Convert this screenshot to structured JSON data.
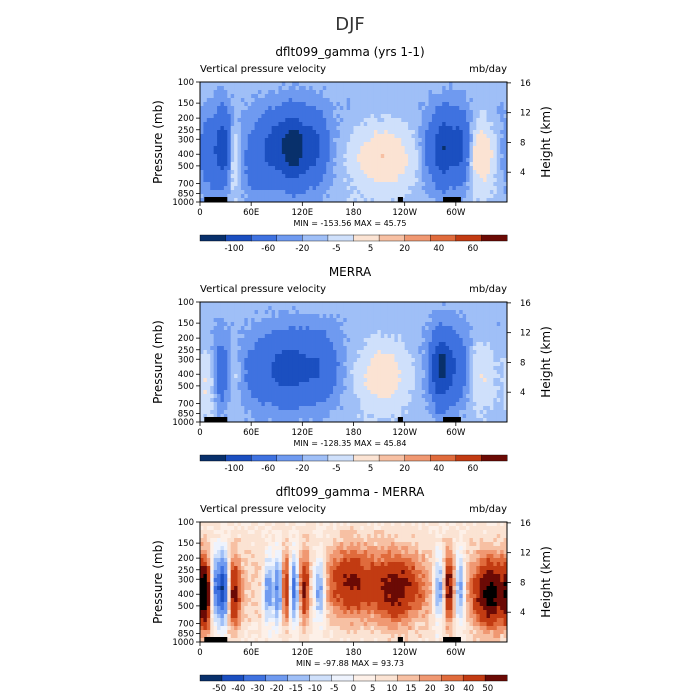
{
  "suptitle": "DJF",
  "colors": {
    "seq11": [
      "#08306b",
      "#1b4fc0",
      "#3f72e0",
      "#6f9af0",
      "#9fbff7",
      "#cfe0fb",
      "#fbe3d3",
      "#f7c0a3",
      "#f09872",
      "#e06b3c",
      "#c23b12",
      "#6b0a05"
    ],
    "seq13": [
      "#08306b",
      "#1b4fc0",
      "#3f72e0",
      "#6f9af0",
      "#9fbff7",
      "#cfe0fb",
      "#eef3fd",
      "#fdf0e8",
      "#fbe3d3",
      "#f7c0a3",
      "#f09872",
      "#e06b3c",
      "#c23b12",
      "#6b0a05"
    ]
  },
  "chart_data": [
    {
      "type": "heatmap",
      "title": "dflt099_gamma (yrs 1-1)",
      "left_label": "Vertical pressure velocity",
      "right_label": "mb/day",
      "ylabel": "Pressure (mb)",
      "ylabel_right": "Height (km)",
      "x_ticks": [
        "0",
        "60E",
        "120E",
        "180",
        "120W",
        "60W"
      ],
      "x_tick_lon": [
        0,
        60,
        120,
        180,
        240,
        300
      ],
      "y_ticks": [
        "100",
        "150",
        "200",
        "250",
        "300",
        "400",
        "500",
        "700",
        "850",
        "1000"
      ],
      "y_tick_p": [
        100,
        150,
        200,
        250,
        300,
        400,
        500,
        700,
        850,
        1000
      ],
      "right_ticks": [
        "16",
        "12",
        "8",
        "4"
      ],
      "right_tick_km": [
        16,
        12,
        8,
        4
      ],
      "stats": "MIN = -153.56   MAX =  45.75",
      "levels": [
        "-100",
        "-60",
        "-20",
        "-5",
        "5",
        "20",
        "40",
        "60"
      ],
      "palette": "seq11",
      "features": [
        {
          "lon": 12,
          "w": 8,
          "amp": -40,
          "d": 0.6
        },
        {
          "lon": 28,
          "w": 6,
          "amp": -90,
          "d": 0.55
        },
        {
          "lon": 38,
          "w": 6,
          "amp": 35,
          "d": 0.6
        },
        {
          "lon": 65,
          "w": 10,
          "amp": -25,
          "d": 0.7
        },
        {
          "lon": 90,
          "w": 14,
          "amp": -70,
          "d": 0.55
        },
        {
          "lon": 112,
          "w": 10,
          "amp": -100,
          "d": 0.55
        },
        {
          "lon": 135,
          "w": 10,
          "amp": -60,
          "d": 0.55
        },
        {
          "lon": 215,
          "w": 28,
          "amp": 45,
          "d": 0.62
        },
        {
          "lon": 268,
          "w": 8,
          "amp": -20,
          "d": 0.6
        },
        {
          "lon": 285,
          "w": 8,
          "amp": -90,
          "d": 0.55
        },
        {
          "lon": 305,
          "w": 8,
          "amp": -70,
          "d": 0.55
        },
        {
          "lon": 330,
          "w": 12,
          "amp": 45,
          "d": 0.6
        }
      ],
      "base_amp": -8
    },
    {
      "type": "heatmap",
      "title": "MERRA",
      "left_label": "Vertical pressure velocity",
      "right_label": "mb/day",
      "ylabel": "Pressure (mb)",
      "ylabel_right": "Height (km)",
      "x_ticks": [
        "0",
        "60E",
        "120E",
        "180",
        "120W",
        "60W"
      ],
      "x_tick_lon": [
        0,
        60,
        120,
        180,
        240,
        300
      ],
      "y_ticks": [
        "100",
        "150",
        "200",
        "250",
        "300",
        "400",
        "500",
        "700",
        "850",
        "1000"
      ],
      "y_tick_p": [
        100,
        150,
        200,
        250,
        300,
        400,
        500,
        700,
        850,
        1000
      ],
      "right_ticks": [
        "16",
        "12",
        "8",
        "4"
      ],
      "right_tick_km": [
        16,
        12,
        8,
        4
      ],
      "stats": "MIN = -128.35   MAX =  45.84",
      "levels": [
        "-100",
        "-60",
        "-20",
        "-5",
        "5",
        "20",
        "40",
        "60"
      ],
      "palette": "seq11",
      "features": [
        {
          "lon": 10,
          "w": 10,
          "amp": 30,
          "d": 0.65
        },
        {
          "lon": 25,
          "w": 8,
          "amp": -45,
          "d": 0.6
        },
        {
          "lon": 38,
          "w": 7,
          "amp": 25,
          "d": 0.6
        },
        {
          "lon": 70,
          "w": 18,
          "amp": -25,
          "d": 0.6
        },
        {
          "lon": 105,
          "w": 18,
          "amp": -70,
          "d": 0.55
        },
        {
          "lon": 140,
          "w": 14,
          "amp": -45,
          "d": 0.55
        },
        {
          "lon": 215,
          "w": 22,
          "amp": 40,
          "d": 0.6
        },
        {
          "lon": 282,
          "w": 8,
          "amp": -100,
          "d": 0.55
        },
        {
          "lon": 300,
          "w": 10,
          "amp": -45,
          "d": 0.55
        },
        {
          "lon": 330,
          "w": 12,
          "amp": 25,
          "d": 0.6
        }
      ],
      "base_amp": -6
    },
    {
      "type": "heatmap",
      "title": "dflt099_gamma - MERRA",
      "left_label": "Vertical pressure velocity",
      "right_label": "mb/day",
      "ylabel": "Pressure (mb)",
      "ylabel_right": "Height (km)",
      "x_ticks": [
        "0",
        "60E",
        "120E",
        "180",
        "120W",
        "60W"
      ],
      "x_tick_lon": [
        0,
        60,
        120,
        180,
        240,
        300
      ],
      "y_ticks": [
        "100",
        "150",
        "200",
        "250",
        "300",
        "400",
        "500",
        "700",
        "850",
        "1000"
      ],
      "y_tick_p": [
        100,
        150,
        200,
        250,
        300,
        400,
        500,
        700,
        850,
        1000
      ],
      "right_ticks": [
        "16",
        "12",
        "8",
        "4"
      ],
      "right_tick_km": [
        16,
        12,
        8,
        4
      ],
      "stats": "MIN =  -97.88   MAX =  93.73",
      "levels": [
        "-50",
        "-40",
        "-30",
        "-20",
        "-15",
        "-10",
        "-5",
        "0",
        "5",
        "10",
        "15",
        "20",
        "30",
        "40",
        "50"
      ],
      "palette": "seq13",
      "features": [
        {
          "lon": 6,
          "w": 6,
          "amp": 45,
          "d": 0.6
        },
        {
          "lon": 18,
          "w": 5,
          "amp": -40,
          "d": 0.55
        },
        {
          "lon": 28,
          "w": 4,
          "amp": -50,
          "d": 0.55
        },
        {
          "lon": 40,
          "w": 5,
          "amp": 30,
          "d": 0.6
        },
        {
          "lon": 80,
          "w": 4,
          "amp": -30,
          "d": 0.55
        },
        {
          "lon": 92,
          "w": 4,
          "amp": -40,
          "d": 0.55
        },
        {
          "lon": 100,
          "w": 4,
          "amp": 30,
          "d": 0.55
        },
        {
          "lon": 110,
          "w": 4,
          "amp": -40,
          "d": 0.55
        },
        {
          "lon": 122,
          "w": 4,
          "amp": 25,
          "d": 0.55
        },
        {
          "lon": 140,
          "w": 5,
          "amp": -30,
          "d": 0.55
        },
        {
          "lon": 175,
          "w": 18,
          "amp": 25,
          "d": 0.5
        },
        {
          "lon": 230,
          "w": 22,
          "amp": 30,
          "d": 0.55
        },
        {
          "lon": 280,
          "w": 4,
          "amp": -30,
          "d": 0.55
        },
        {
          "lon": 292,
          "w": 4,
          "amp": 30,
          "d": 0.55
        },
        {
          "lon": 305,
          "w": 4,
          "amp": -30,
          "d": 0.55
        },
        {
          "lon": 340,
          "w": 14,
          "amp": 40,
          "d": 0.6
        }
      ],
      "base_amp": 5
    }
  ]
}
